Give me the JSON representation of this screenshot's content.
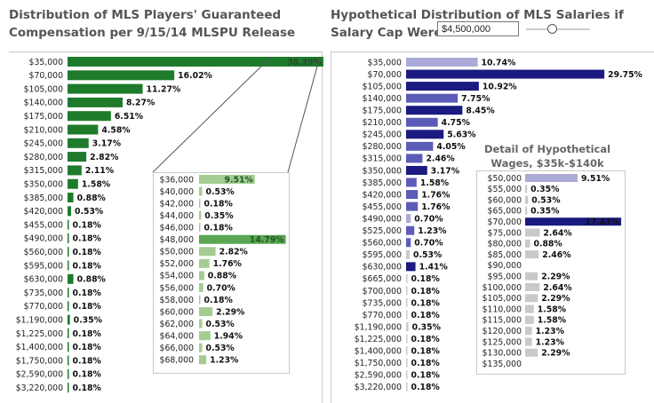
{
  "left_title": "Distribution of MLS Players' Guaranteed Compensation per 9/15/14 MLSPU Release",
  "right_title_line1": "Hypothetical Distribution of MLS Salaries if",
  "right_title_line2": "Salary Cap Were",
  "salary_cap_value": "$4,500,000",
  "detail_title": "Detail of Hypothetical Wages, $35k-$140k",
  "colors": {
    "left_main": "#1e7b2c",
    "left_detail_light": "#a3cc93",
    "left_detail_highlight": "#5aa653",
    "right_dark": "#1a1a80",
    "right_medium": "#5c5cb8",
    "right_light": "#aaaad6",
    "right_pale": "#c9c9c9"
  },
  "chart_data": [
    {
      "type": "bar",
      "title": "Distribution of MLS Players' Guaranteed Compensation per 9/15/14 MLSPU Release",
      "categories": [
        "$35,000",
        "$70,000",
        "$105,000",
        "$140,000",
        "$175,000",
        "$210,000",
        "$245,000",
        "$280,000",
        "$315,000",
        "$350,000",
        "$385,000",
        "$420,000",
        "$455,000",
        "$490,000",
        "$560,000",
        "$595,000",
        "$630,000",
        "$735,000",
        "$770,000",
        "$1,190,000",
        "$1,225,000",
        "$1,400,000",
        "$1,750,000",
        "$2,590,000",
        "$3,220,000"
      ],
      "values": [
        38.39,
        16.02,
        11.27,
        8.27,
        6.51,
        4.58,
        3.17,
        2.82,
        2.11,
        1.58,
        0.88,
        0.53,
        0.18,
        0.18,
        0.18,
        0.18,
        0.88,
        0.18,
        0.18,
        0.35,
        0.18,
        0.18,
        0.18,
        0.18,
        0.18
      ],
      "value_labels": [
        "38.39%",
        "16.02%",
        "11.27%",
        "8.27%",
        "6.51%",
        "4.58%",
        "3.17%",
        "2.82%",
        "2.11%",
        "1.58%",
        "0.88%",
        "0.53%",
        "0.18%",
        "0.18%",
        "0.18%",
        "0.18%",
        "0.88%",
        "0.18%",
        "0.18%",
        "0.35%",
        "0.18%",
        "0.18%",
        "0.18%",
        "0.18%",
        "0.18%"
      ],
      "unit": "%"
    },
    {
      "type": "bar",
      "title": "",
      "categories": [
        "$36,000",
        "$40,000",
        "$42,000",
        "$44,000",
        "$46,000",
        "$48,000",
        "$50,000",
        "$52,000",
        "$54,000",
        "$56,000",
        "$58,000",
        "$60,000",
        "$62,000",
        "$64,000",
        "$66,000",
        "$68,000"
      ],
      "values": [
        9.51,
        0.53,
        0.18,
        0.35,
        0.18,
        14.79,
        2.82,
        1.76,
        0.88,
        0.7,
        0.18,
        2.29,
        0.53,
        1.94,
        0.53,
        1.23
      ],
      "value_labels": [
        "9.51%",
        "0.53%",
        "0.18%",
        "0.35%",
        "0.18%",
        "14.79%",
        "2.82%",
        "1.76%",
        "0.88%",
        "0.70%",
        "0.18%",
        "2.29%",
        "0.53%",
        "1.94%",
        "0.53%",
        "1.23%"
      ],
      "highlight_index": 5,
      "unit": "%"
    },
    {
      "type": "bar",
      "title": "Hypothetical Distribution of MLS Salaries if Salary Cap Were $4,500,000",
      "categories": [
        "$35,000",
        "$70,000",
        "$105,000",
        "$140,000",
        "$175,000",
        "$210,000",
        "$245,000",
        "$280,000",
        "$315,000",
        "$350,000",
        "$385,000",
        "$420,000",
        "$455,000",
        "$490,000",
        "$525,000",
        "$560,000",
        "$595,000",
        "$630,000",
        "$665,000",
        "$700,000",
        "$735,000",
        "$770,000",
        "$1,190,000",
        "$1,225,000",
        "$1,400,000",
        "$1,750,000",
        "$2,590,000",
        "$3,220,000"
      ],
      "values": [
        10.74,
        29.75,
        10.92,
        7.75,
        8.45,
        4.75,
        5.63,
        4.05,
        2.46,
        3.17,
        1.58,
        1.76,
        1.76,
        0.7,
        1.23,
        0.7,
        0.53,
        1.41,
        0.18,
        0.18,
        0.18,
        0.18,
        0.35,
        0.18,
        0.18,
        0.18,
        0.18,
        0.18
      ],
      "value_labels": [
        "10.74%",
        "29.75%",
        "10.92%",
        "7.75%",
        "8.45%",
        "4.75%",
        "5.63%",
        "4.05%",
        "2.46%",
        "3.17%",
        "1.58%",
        "1.76%",
        "1.76%",
        "0.70%",
        "1.23%",
        "0.70%",
        "0.53%",
        "1.41%",
        "0.18%",
        "0.18%",
        "0.18%",
        "0.18%",
        "0.35%",
        "0.18%",
        "0.18%",
        "0.18%",
        "0.18%",
        "0.18%"
      ],
      "colors": [
        "light",
        "dark",
        "dark",
        "medium",
        "dark",
        "medium",
        "dark",
        "medium",
        "medium",
        "dark",
        "medium",
        "medium",
        "medium",
        "light",
        "medium",
        "medium",
        "pale",
        "dark",
        "pale",
        "pale",
        "pale",
        "pale",
        "pale",
        "pale",
        "pale",
        "pale",
        "pale",
        "pale"
      ],
      "unit": "%"
    },
    {
      "type": "bar",
      "title": "Detail of Hypothetical Wages, $35k-$140k",
      "categories": [
        "$50,000",
        "$55,000",
        "$60,000",
        "$65,000",
        "$70,000",
        "$75,000",
        "$80,000",
        "$85,000",
        "$90,000",
        "$95,000",
        "$100,000",
        "$105,000",
        "$110,000",
        "$115,000",
        "$120,000",
        "$125,000",
        "$130,000",
        "$135,000"
      ],
      "values": [
        9.51,
        0.35,
        0.53,
        0.35,
        17.43,
        2.64,
        0.88,
        2.46,
        0.0,
        2.29,
        2.64,
        2.29,
        1.58,
        1.58,
        1.23,
        1.23,
        2.29,
        0.0
      ],
      "value_labels": [
        "9.51%",
        "0.35%",
        "0.53%",
        "0.35%",
        "17.43%",
        "2.64%",
        "0.88%",
        "2.46%",
        "",
        "2.29%",
        "2.64%",
        "2.29%",
        "1.58%",
        "1.58%",
        "1.23%",
        "1.23%",
        "2.29%",
        ""
      ],
      "colors": [
        "light",
        "pale",
        "pale",
        "pale",
        "dark",
        "pale",
        "pale",
        "pale",
        "pale",
        "pale",
        "pale",
        "pale",
        "pale",
        "pale",
        "pale",
        "pale",
        "pale",
        "pale"
      ],
      "unit": "%"
    }
  ]
}
